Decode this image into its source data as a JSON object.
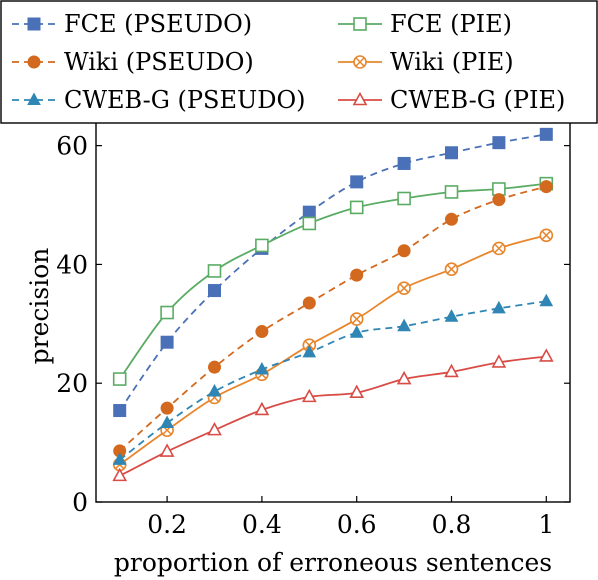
{
  "chart_data": {
    "type": "line",
    "title": "",
    "xlabel": "proportion of erroneous sentences",
    "ylabel": "precision",
    "x": [
      0.1,
      0.2,
      0.3,
      0.4,
      0.5,
      0.6,
      0.7,
      0.8,
      0.9,
      1.0
    ],
    "xlim": [
      0.05,
      1.05
    ],
    "ylim": [
      0,
      66
    ],
    "xticks": [
      0.2,
      0.4,
      0.6,
      0.8,
      1.0
    ],
    "xtick_labels": [
      "0.2",
      "0.4",
      "0.6",
      "0.8",
      "1"
    ],
    "yticks": [
      0,
      20,
      40,
      60
    ],
    "ytick_labels": [
      "0",
      "20",
      "40",
      "60"
    ],
    "grid": false,
    "legend_position": "top",
    "series": [
      {
        "name": "FCE (PSEUDO)",
        "color": "#4a71b8",
        "dashed": true,
        "marker": "square-filled",
        "values": [
          15.4,
          26.9,
          35.6,
          42.7,
          48.8,
          53.9,
          57.0,
          58.8,
          60.5,
          61.9
        ]
      },
      {
        "name": "FCE (PIE)",
        "color": "#5aac64",
        "dashed": false,
        "marker": "square-open",
        "values": [
          20.7,
          31.9,
          38.9,
          43.2,
          46.9,
          49.6,
          51.1,
          52.2,
          52.7,
          53.6
        ]
      },
      {
        "name": "Wiki (PSEUDO)",
        "color": "#d2691e",
        "dashed": true,
        "marker": "circle-filled",
        "values": [
          8.6,
          15.8,
          22.7,
          28.7,
          33.5,
          38.2,
          42.3,
          47.6,
          50.9,
          53.1
        ]
      },
      {
        "name": "Wiki (PIE)",
        "color": "#e8862d",
        "dashed": false,
        "marker": "circle-cross",
        "values": [
          6.3,
          12.1,
          17.6,
          21.5,
          26.4,
          30.8,
          36.0,
          39.2,
          42.7,
          44.9
        ]
      },
      {
        "name": "CWEB-G (PSEUDO)",
        "color": "#2f86b4",
        "dashed": true,
        "marker": "triangle-filled",
        "values": [
          7.1,
          13.3,
          18.6,
          22.3,
          25.2,
          28.5,
          29.6,
          31.2,
          32.6,
          33.8
        ]
      },
      {
        "name": "CWEB-G (PIE)",
        "color": "#d84c45",
        "dashed": false,
        "marker": "triangle-open",
        "values": [
          4.4,
          8.5,
          12.1,
          15.5,
          17.7,
          18.4,
          20.7,
          21.9,
          23.5,
          24.5
        ]
      }
    ]
  }
}
